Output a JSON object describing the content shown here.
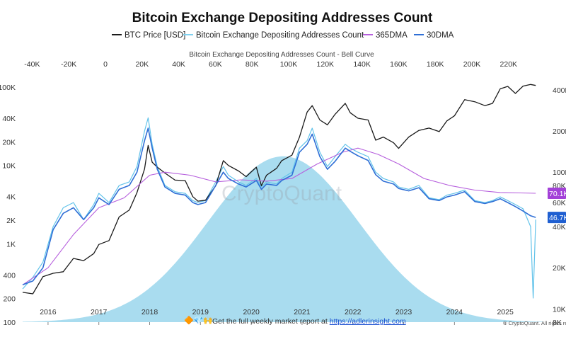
{
  "title": "Bitcoin Exchange Depositing Addresses Count",
  "legend": [
    {
      "name": "BTC Price [USD]",
      "color": "#1a1a1a"
    },
    {
      "name": "Bitcoin Exchange Depositing Addresses Count",
      "color": "#7fd0ef"
    },
    {
      "name": "365DMA",
      "color": "#b65fdd"
    },
    {
      "name": "30DMA",
      "color": "#2f6fd6"
    }
  ],
  "top_axis_title": "Bitcoin Exchange Depositing Addresses Count - Bell Curve",
  "watermark": "CryptoQuant",
  "footer": {
    "text": "Get the full weekly market report at",
    "link": "https://adlerinsight.com",
    "copyright": "© CryptoQuant. All rights res"
  },
  "badges": [
    {
      "label": "70.1K",
      "color": "#a341d8",
      "value": 70100
    },
    {
      "label": "46.7K",
      "color": "#1f5fd1",
      "value": 46700
    }
  ],
  "chart_data": {
    "type": "line",
    "x_range": [
      2015.5,
      2025.75
    ],
    "x_ticks": [
      "2016",
      "2017",
      "2018",
      "2019",
      "2020",
      "2021",
      "2022",
      "2023",
      "2024",
      "2025"
    ],
    "top_ticks": [
      "-40K",
      "-20K",
      "0",
      "20K",
      "40K",
      "60K",
      "80K",
      "100K",
      "120K",
      "140K",
      "160K",
      "180K",
      "200K",
      "220K"
    ],
    "left_axis": {
      "scale": "log",
      "ticks": [
        "100",
        "200",
        "400",
        "1K",
        "2K",
        "4K",
        "10K",
        "20K",
        "40K",
        "100K"
      ]
    },
    "right_axis": {
      "scale": "log",
      "ticks": [
        "8K",
        "10K",
        "20K",
        "40K",
        "60K",
        "80K",
        "100K",
        "200K",
        "400K"
      ]
    },
    "bell_curve": {
      "peak_x": 97000,
      "peak_y": 0.85
    },
    "series": [
      {
        "name": "BTC Price [USD]",
        "axis": "left",
        "points": [
          [
            2015.5,
            240
          ],
          [
            2015.7,
            230
          ],
          [
            2015.9,
            380
          ],
          [
            2016.1,
            420
          ],
          [
            2016.3,
            440
          ],
          [
            2016.5,
            650
          ],
          [
            2016.7,
            610
          ],
          [
            2016.9,
            750
          ],
          [
            2017.0,
            980
          ],
          [
            2017.2,
            1100
          ],
          [
            2017.4,
            2200
          ],
          [
            2017.6,
            2700
          ],
          [
            2017.75,
            4500
          ],
          [
            2017.9,
            9000
          ],
          [
            2017.97,
            18000
          ],
          [
            2018.05,
            11000
          ],
          [
            2018.15,
            9500
          ],
          [
            2018.3,
            8000
          ],
          [
            2018.5,
            6500
          ],
          [
            2018.7,
            6400
          ],
          [
            2018.85,
            4000
          ],
          [
            2018.95,
            3500
          ],
          [
            2019.1,
            3600
          ],
          [
            2019.3,
            5500
          ],
          [
            2019.45,
            11500
          ],
          [
            2019.55,
            10000
          ],
          [
            2019.75,
            8500
          ],
          [
            2019.9,
            7200
          ],
          [
            2020.1,
            9500
          ],
          [
            2020.2,
            5500
          ],
          [
            2020.3,
            7500
          ],
          [
            2020.5,
            9200
          ],
          [
            2020.6,
            11500
          ],
          [
            2020.8,
            13500
          ],
          [
            2020.95,
            23000
          ],
          [
            2021.1,
            48000
          ],
          [
            2021.2,
            58000
          ],
          [
            2021.35,
            38000
          ],
          [
            2021.5,
            33000
          ],
          [
            2021.65,
            45000
          ],
          [
            2021.85,
            62000
          ],
          [
            2021.95,
            47000
          ],
          [
            2022.1,
            40000
          ],
          [
            2022.3,
            38000
          ],
          [
            2022.45,
            21000
          ],
          [
            2022.6,
            23000
          ],
          [
            2022.8,
            19500
          ],
          [
            2022.9,
            16500
          ],
          [
            2023.1,
            23000
          ],
          [
            2023.3,
            28000
          ],
          [
            2023.5,
            30000
          ],
          [
            2023.7,
            27000
          ],
          [
            2023.85,
            37000
          ],
          [
            2024.0,
            43000
          ],
          [
            2024.2,
            69000
          ],
          [
            2024.4,
            65000
          ],
          [
            2024.6,
            58000
          ],
          [
            2024.75,
            62000
          ],
          [
            2024.9,
            95000
          ],
          [
            2025.05,
            102000
          ],
          [
            2025.2,
            83000
          ],
          [
            2025.35,
            103000
          ],
          [
            2025.5,
            108000
          ],
          [
            2025.6,
            105000
          ]
        ]
      },
      {
        "name": "Bitcoin Exchange Depositing Addresses Count",
        "axis": "right",
        "points": [
          [
            2015.5,
            14000
          ],
          [
            2015.7,
            17000
          ],
          [
            2015.9,
            22000
          ],
          [
            2016.1,
            40000
          ],
          [
            2016.3,
            55000
          ],
          [
            2016.5,
            60000
          ],
          [
            2016.7,
            45000
          ],
          [
            2016.9,
            58000
          ],
          [
            2017.0,
            70000
          ],
          [
            2017.2,
            60000
          ],
          [
            2017.4,
            80000
          ],
          [
            2017.6,
            85000
          ],
          [
            2017.75,
            110000
          ],
          [
            2017.9,
            200000
          ],
          [
            2017.97,
            250000
          ],
          [
            2018.05,
            160000
          ],
          [
            2018.15,
            110000
          ],
          [
            2018.3,
            80000
          ],
          [
            2018.5,
            72000
          ],
          [
            2018.7,
            70000
          ],
          [
            2018.85,
            62000
          ],
          [
            2018.95,
            60000
          ],
          [
            2019.1,
            62000
          ],
          [
            2019.3,
            85000
          ],
          [
            2019.45,
            110000
          ],
          [
            2019.55,
            95000
          ],
          [
            2019.75,
            85000
          ],
          [
            2019.9,
            80000
          ],
          [
            2020.1,
            90000
          ],
          [
            2020.2,
            78000
          ],
          [
            2020.3,
            85000
          ],
          [
            2020.5,
            82000
          ],
          [
            2020.6,
            90000
          ],
          [
            2020.8,
            100000
          ],
          [
            2020.95,
            150000
          ],
          [
            2021.1,
            170000
          ],
          [
            2021.2,
            210000
          ],
          [
            2021.35,
            140000
          ],
          [
            2021.5,
            110000
          ],
          [
            2021.65,
            130000
          ],
          [
            2021.85,
            160000
          ],
          [
            2021.95,
            150000
          ],
          [
            2022.1,
            140000
          ],
          [
            2022.3,
            130000
          ],
          [
            2022.45,
            100000
          ],
          [
            2022.6,
            90000
          ],
          [
            2022.8,
            85000
          ],
          [
            2022.9,
            78000
          ],
          [
            2023.1,
            75000
          ],
          [
            2023.3,
            80000
          ],
          [
            2023.5,
            65000
          ],
          [
            2023.7,
            63000
          ],
          [
            2023.85,
            68000
          ],
          [
            2024.0,
            70000
          ],
          [
            2024.2,
            74000
          ],
          [
            2024.4,
            62000
          ],
          [
            2024.6,
            60000
          ],
          [
            2024.75,
            62000
          ],
          [
            2024.9,
            66000
          ],
          [
            2025.05,
            62000
          ],
          [
            2025.2,
            58000
          ],
          [
            2025.35,
            54000
          ],
          [
            2025.5,
            40000
          ],
          [
            2025.55,
            12000
          ],
          [
            2025.6,
            45000
          ]
        ]
      },
      {
        "name": "365DMA",
        "axis": "right",
        "points": [
          [
            2015.5,
            15000
          ],
          [
            2016.0,
            20000
          ],
          [
            2016.5,
            35000
          ],
          [
            2017.0,
            55000
          ],
          [
            2017.5,
            65000
          ],
          [
            2018.0,
            95000
          ],
          [
            2018.3,
            100000
          ],
          [
            2018.8,
            95000
          ],
          [
            2019.3,
            85000
          ],
          [
            2019.8,
            88000
          ],
          [
            2020.3,
            86000
          ],
          [
            2020.8,
            90000
          ],
          [
            2021.3,
            115000
          ],
          [
            2021.8,
            140000
          ],
          [
            2022.1,
            150000
          ],
          [
            2022.5,
            135000
          ],
          [
            2022.9,
            115000
          ],
          [
            2023.4,
            90000
          ],
          [
            2023.9,
            80000
          ],
          [
            2024.4,
            74000
          ],
          [
            2024.9,
            71000
          ],
          [
            2025.3,
            70500
          ],
          [
            2025.6,
            70100
          ]
        ]
      },
      {
        "name": "30DMA",
        "axis": "right",
        "points": [
          [
            2015.5,
            15000
          ],
          [
            2015.7,
            16000
          ],
          [
            2015.9,
            20000
          ],
          [
            2016.1,
            38000
          ],
          [
            2016.3,
            50000
          ],
          [
            2016.5,
            55000
          ],
          [
            2016.7,
            45000
          ],
          [
            2016.9,
            55000
          ],
          [
            2017.0,
            65000
          ],
          [
            2017.2,
            58000
          ],
          [
            2017.4,
            75000
          ],
          [
            2017.6,
            80000
          ],
          [
            2017.75,
            100000
          ],
          [
            2017.9,
            170000
          ],
          [
            2017.97,
            210000
          ],
          [
            2018.05,
            150000
          ],
          [
            2018.15,
            105000
          ],
          [
            2018.3,
            78000
          ],
          [
            2018.5,
            70000
          ],
          [
            2018.7,
            68000
          ],
          [
            2018.85,
            60000
          ],
          [
            2018.95,
            58000
          ],
          [
            2019.1,
            60000
          ],
          [
            2019.3,
            80000
          ],
          [
            2019.45,
            100000
          ],
          [
            2019.55,
            90000
          ],
          [
            2019.75,
            82000
          ],
          [
            2019.9,
            78000
          ],
          [
            2020.1,
            87000
          ],
          [
            2020.2,
            75000
          ],
          [
            2020.3,
            82000
          ],
          [
            2020.5,
            80000
          ],
          [
            2020.6,
            87000
          ],
          [
            2020.8,
            95000
          ],
          [
            2020.95,
            140000
          ],
          [
            2021.1,
            160000
          ],
          [
            2021.2,
            190000
          ],
          [
            2021.35,
            130000
          ],
          [
            2021.5,
            105000
          ],
          [
            2021.65,
            120000
          ],
          [
            2021.85,
            150000
          ],
          [
            2021.95,
            142000
          ],
          [
            2022.1,
            132000
          ],
          [
            2022.3,
            122000
          ],
          [
            2022.45,
            96000
          ],
          [
            2022.6,
            86000
          ],
          [
            2022.8,
            82000
          ],
          [
            2022.9,
            76000
          ],
          [
            2023.1,
            73000
          ],
          [
            2023.3,
            77000
          ],
          [
            2023.5,
            64000
          ],
          [
            2023.7,
            62000
          ],
          [
            2023.85,
            66000
          ],
          [
            2024.0,
            68000
          ],
          [
            2024.2,
            72000
          ],
          [
            2024.4,
            61000
          ],
          [
            2024.6,
            59000
          ],
          [
            2024.75,
            61000
          ],
          [
            2024.9,
            64000
          ],
          [
            2025.05,
            60000
          ],
          [
            2025.2,
            56000
          ],
          [
            2025.35,
            52000
          ],
          [
            2025.5,
            48000
          ],
          [
            2025.6,
            46700
          ]
        ]
      }
    ]
  }
}
